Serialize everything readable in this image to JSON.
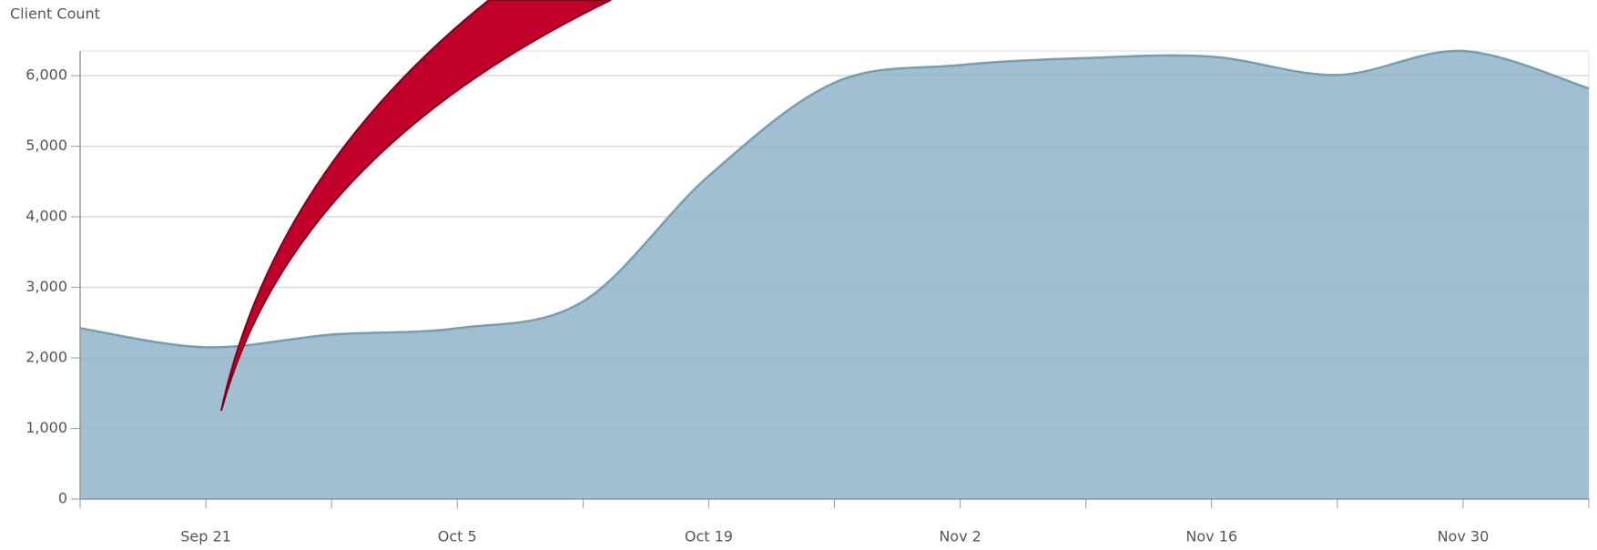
{
  "chart_data": {
    "type": "area",
    "y_axis_label": "Client Count",
    "categories": [
      null,
      "Sep 21",
      null,
      "Oct 5",
      null,
      "Oct 19",
      null,
      "Nov 2",
      null,
      "Nov 16",
      null,
      "Nov 30",
      null
    ],
    "values": [
      2420,
      2150,
      2330,
      2420,
      2800,
      4580,
      5900,
      6150,
      6250,
      6270,
      6010,
      6350,
      5820
    ],
    "color": "#91b4c8",
    "line_color": "#6fa0b5",
    "ylim": [
      0,
      6350
    ],
    "yticks": [
      0,
      {
        "value": 1000,
        "label": "1,000"
      },
      {
        "value": 2000,
        "label": "2,000"
      },
      {
        "value": 3000,
        "label": "3,000"
      },
      {
        "value": 4000,
        "label": "4,000"
      },
      {
        "value": 5000,
        "label": "5,000"
      },
      {
        "value": 6000,
        "label": "6,000"
      }
    ],
    "grid": true
  }
}
